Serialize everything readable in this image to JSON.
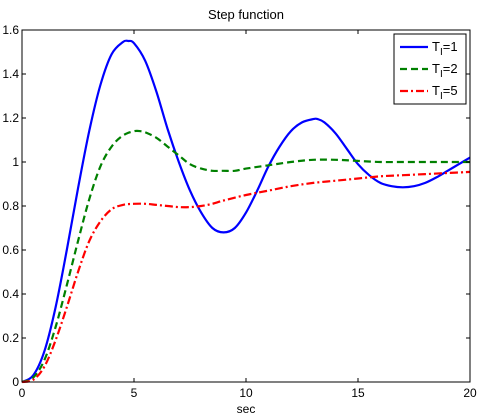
{
  "chart_data": {
    "type": "line",
    "title": "Step function",
    "xlabel": "sec",
    "ylabel": "",
    "xlim": [
      0,
      20
    ],
    "ylim": [
      0,
      1.6
    ],
    "xticks": [
      "0",
      "5",
      "10",
      "15",
      "20"
    ],
    "yticks": [
      "0",
      "0.2",
      "0.4",
      "0.6",
      "0.8",
      "1",
      "1.2",
      "1.4",
      "1.6"
    ],
    "grid": false,
    "legend_position": "top-right",
    "series": [
      {
        "name": "T_I=1",
        "legend_main": "T",
        "legend_sub": "I",
        "legend_tail": "=1",
        "color": "#0000ff",
        "style": "solid",
        "x": [
          0,
          0.5,
          1,
          1.5,
          2,
          2.5,
          3,
          3.5,
          4,
          4.5,
          4.75,
          5,
          5.5,
          6,
          6.5,
          7,
          7.5,
          8,
          8.5,
          9,
          9.5,
          10,
          10.5,
          11,
          11.5,
          12,
          12.5,
          13,
          13.2,
          13.5,
          14,
          14.5,
          15,
          15.5,
          16,
          16.5,
          17,
          17.5,
          18,
          18.5,
          19,
          19.5,
          20
        ],
        "y": [
          0,
          0.03,
          0.14,
          0.34,
          0.6,
          0.88,
          1.14,
          1.35,
          1.49,
          1.545,
          1.55,
          1.54,
          1.46,
          1.32,
          1.15,
          1.0,
          0.87,
          0.77,
          0.7,
          0.68,
          0.7,
          0.77,
          0.87,
          0.98,
          1.07,
          1.14,
          1.18,
          1.195,
          1.195,
          1.18,
          1.13,
          1.06,
          0.99,
          0.94,
          0.905,
          0.89,
          0.885,
          0.89,
          0.905,
          0.93,
          0.96,
          0.99,
          1.02
        ]
      },
      {
        "name": "T_I=2",
        "legend_main": "T",
        "legend_sub": "I",
        "legend_tail": "=2",
        "color": "#008000",
        "style": "dashed",
        "x": [
          0,
          0.5,
          1,
          1.5,
          2,
          2.5,
          3,
          3.5,
          4,
          4.5,
          5,
          5.3,
          5.5,
          6,
          6.5,
          7,
          7.5,
          8,
          8.5,
          9,
          9.5,
          10,
          11,
          12,
          13,
          14,
          15,
          16,
          17,
          18,
          19,
          20
        ],
        "y": [
          0,
          0.02,
          0.1,
          0.25,
          0.44,
          0.64,
          0.83,
          0.98,
          1.07,
          1.12,
          1.14,
          1.14,
          1.135,
          1.11,
          1.07,
          1.03,
          0.99,
          0.97,
          0.96,
          0.96,
          0.96,
          0.97,
          0.985,
          1.0,
          1.01,
          1.01,
          1.005,
          1.0,
          1.0,
          1.0,
          1.0,
          1.0
        ]
      },
      {
        "name": "T_I=5",
        "legend_main": "T",
        "legend_sub": "I",
        "legend_tail": "=5",
        "color": "#ff0000",
        "style": "dashdot",
        "x": [
          0,
          0.5,
          1,
          1.5,
          2,
          2.5,
          3,
          3.5,
          4,
          4.5,
          5,
          5.5,
          6,
          6.5,
          7,
          7.5,
          8,
          8.5,
          9,
          10,
          11,
          12,
          13,
          14,
          15,
          16,
          17,
          18,
          19,
          20
        ],
        "y": [
          0,
          0.01,
          0.07,
          0.19,
          0.34,
          0.5,
          0.64,
          0.73,
          0.785,
          0.805,
          0.81,
          0.81,
          0.805,
          0.8,
          0.795,
          0.795,
          0.8,
          0.81,
          0.825,
          0.85,
          0.87,
          0.89,
          0.905,
          0.915,
          0.925,
          0.935,
          0.94,
          0.945,
          0.95,
          0.955
        ]
      }
    ]
  }
}
